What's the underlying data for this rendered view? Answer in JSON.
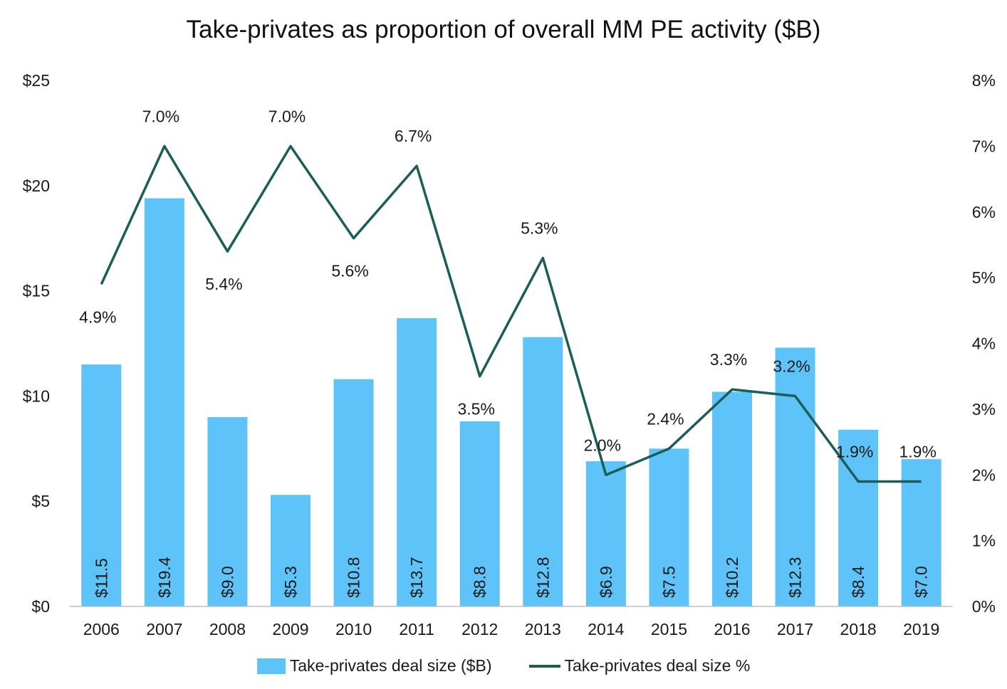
{
  "chart_data": {
    "type": "bar",
    "title": "Take-privates as proportion of overall MM PE activity ($B)",
    "categories": [
      "2006",
      "2007",
      "2008",
      "2009",
      "2010",
      "2011",
      "2012",
      "2013",
      "2014",
      "2015",
      "2016",
      "2017",
      "2018",
      "2019"
    ],
    "series": [
      {
        "name": "Take-privates deal size ($B)",
        "type": "bar",
        "axis": "left",
        "color": "#5EC3F8",
        "values": [
          11.5,
          19.4,
          9.0,
          5.3,
          10.8,
          13.7,
          8.8,
          12.8,
          6.9,
          7.5,
          10.2,
          12.3,
          8.4,
          7.0
        ],
        "labels": [
          "$11.5",
          "$19.4",
          "$9.0",
          "$5.3",
          "$10.8",
          "$13.7",
          "$8.8",
          "$12.8",
          "$6.9",
          "$7.5",
          "$10.2",
          "$12.3",
          "$8.4",
          "$7.0"
        ]
      },
      {
        "name": "Take-privates deal size %",
        "type": "line",
        "axis": "right",
        "color": "#1B5E58",
        "values": [
          4.9,
          7.0,
          5.4,
          7.0,
          5.6,
          6.7,
          3.5,
          5.3,
          2.0,
          2.4,
          3.3,
          3.2,
          1.9,
          1.9
        ],
        "labels": [
          "4.9%",
          "7.0%",
          "5.4%",
          "7.0%",
          "5.6%",
          "6.7%",
          "3.5%",
          "5.3%",
          "2.0%",
          "2.4%",
          "3.3%",
          "3.2%",
          "1.9%",
          "1.9%"
        ]
      }
    ],
    "y_left": {
      "ylim": [
        0,
        25
      ],
      "ticks": [
        0,
        5,
        10,
        15,
        20,
        25
      ],
      "tick_labels": [
        "$0",
        "$5",
        "$10",
        "$15",
        "$20",
        "$25"
      ]
    },
    "y_right": {
      "ylim": [
        0,
        8
      ],
      "ticks": [
        0,
        1,
        2,
        3,
        4,
        5,
        6,
        7,
        8
      ],
      "tick_labels": [
        "0%",
        "1%",
        "2%",
        "3%",
        "4%",
        "5%",
        "6%",
        "7%",
        "8%"
      ]
    },
    "grid": false,
    "legend_position": "bottom"
  }
}
